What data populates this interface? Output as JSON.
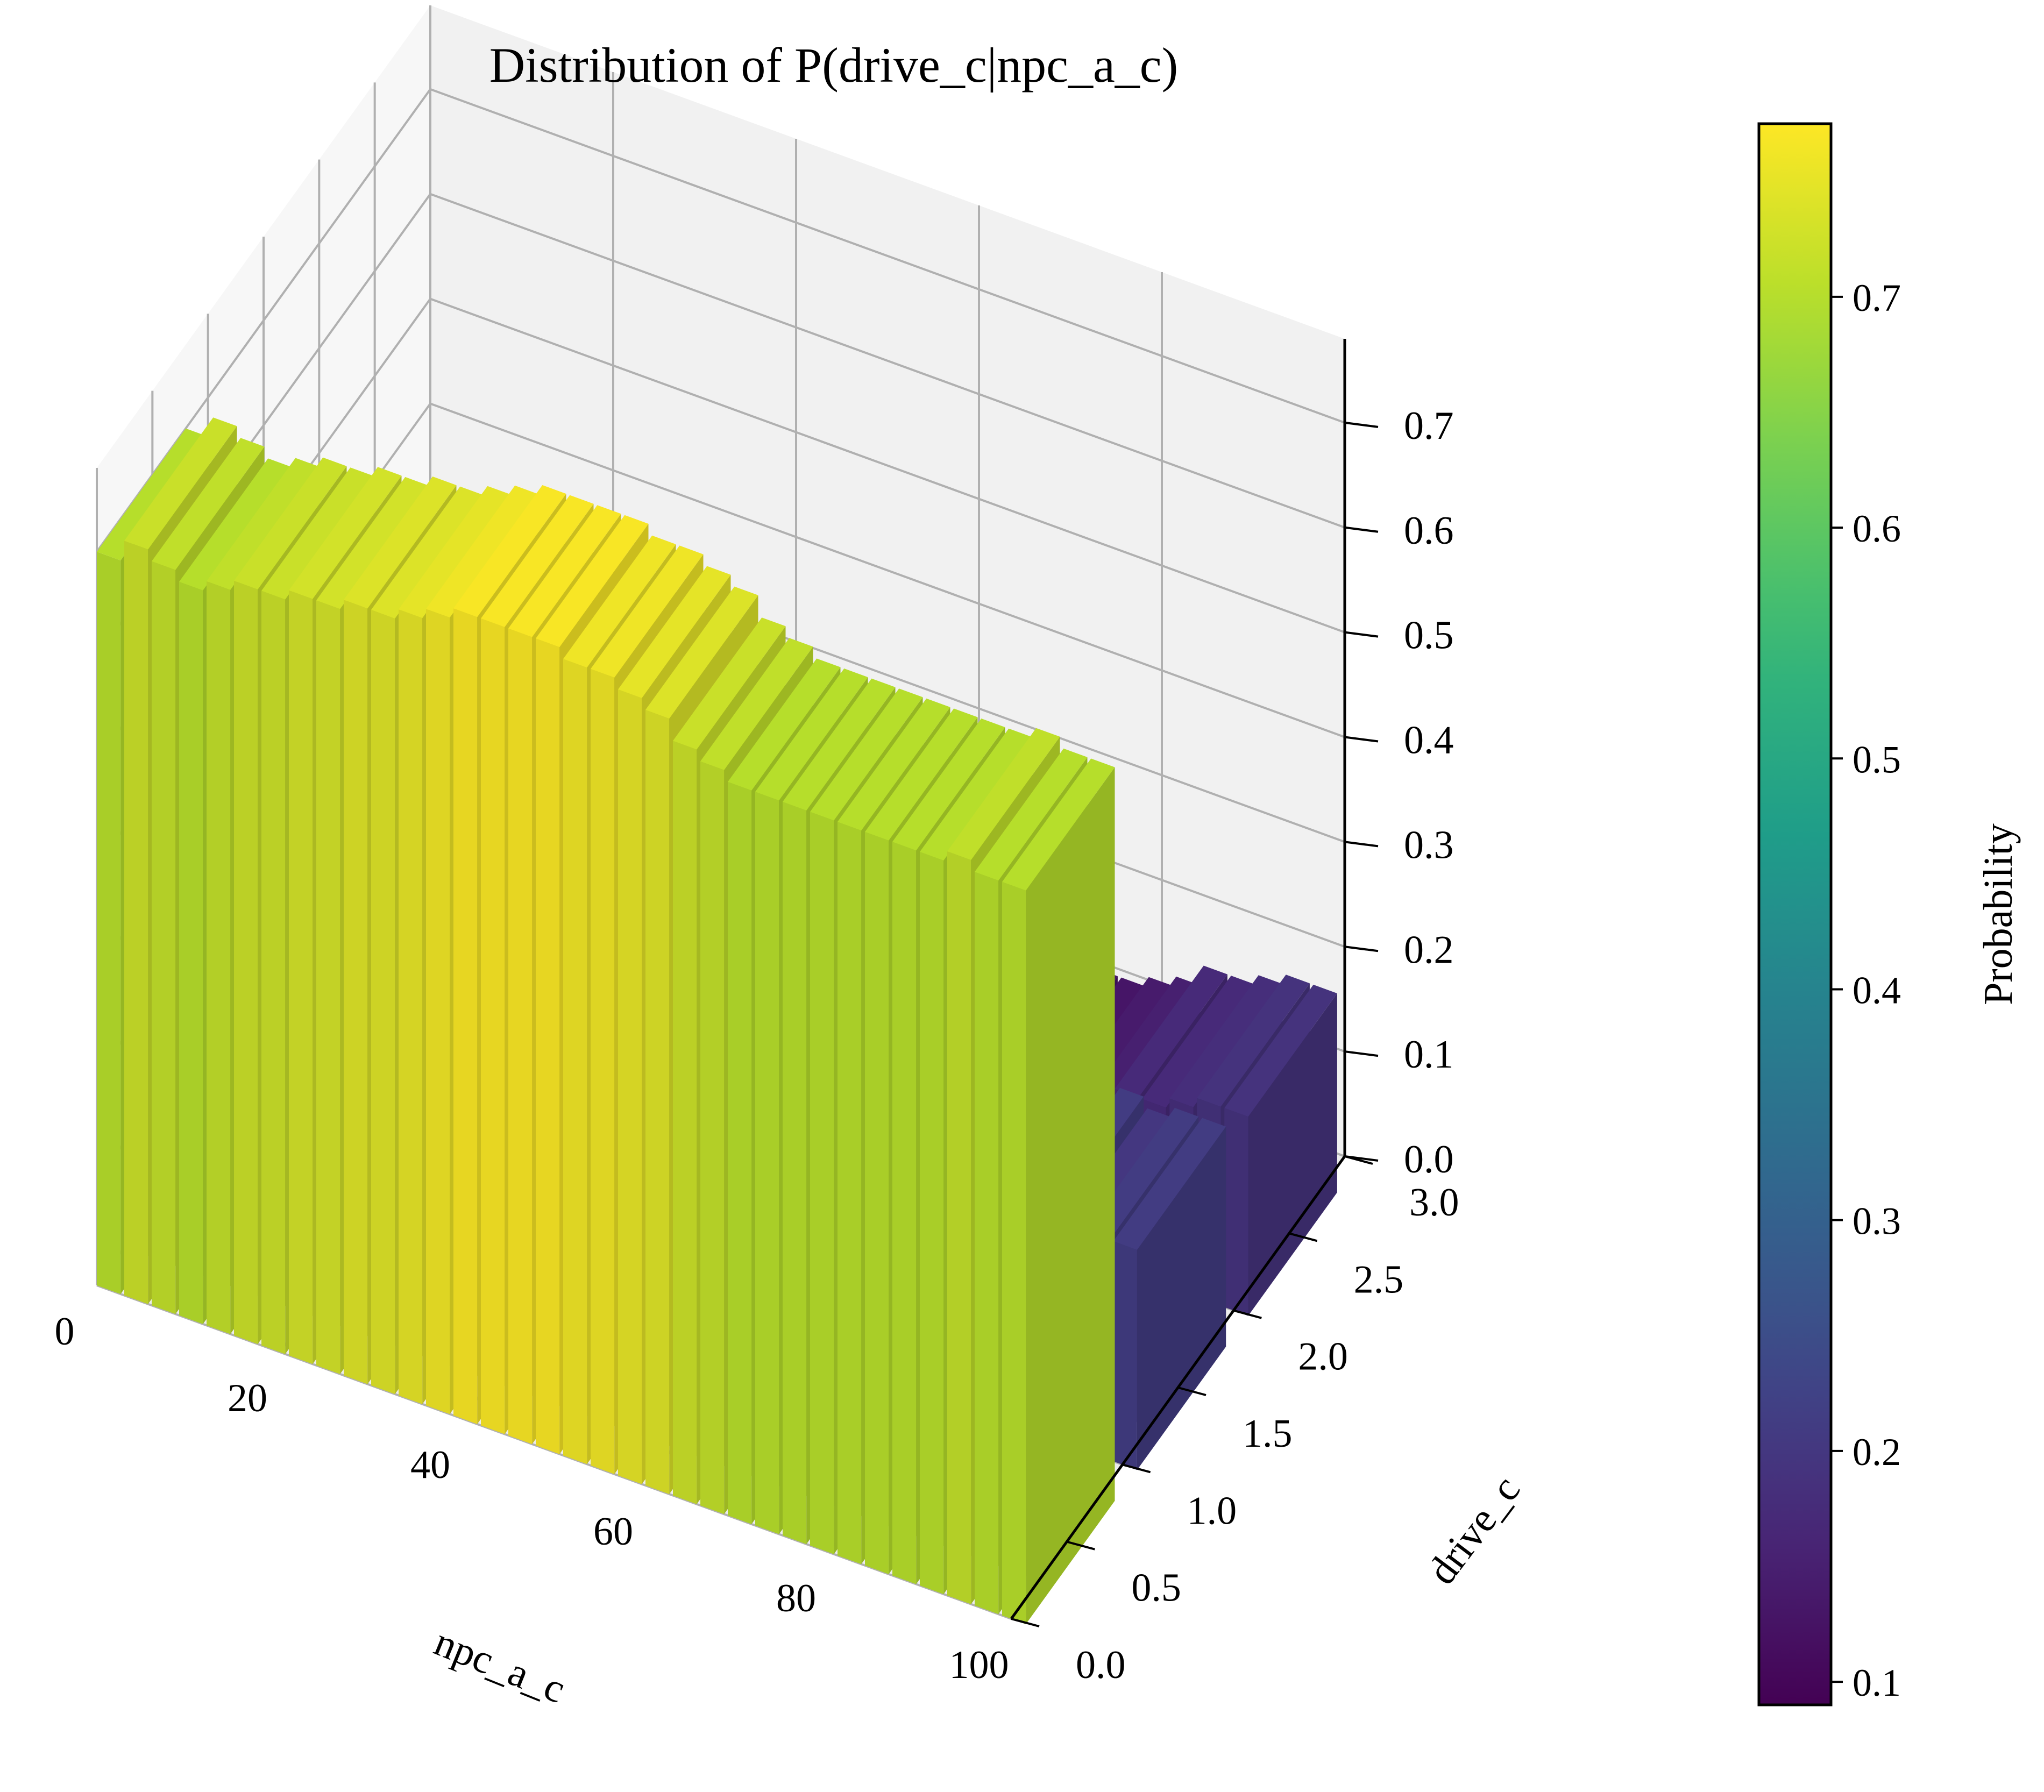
{
  "chart_data": {
    "type": "bar3d",
    "title": "Distribution of P(drive_c|npc_a_c)",
    "xlabel": "npc_a_c",
    "ylabel": "drive_c",
    "zlabel": "",
    "xlim": [
      0,
      100
    ],
    "ylim": [
      0,
      3
    ],
    "zlim": [
      0,
      0.78
    ],
    "x_ticks": [
      "0",
      "20",
      "40",
      "60",
      "80",
      "100"
    ],
    "y_ticks": [
      "0.0",
      "0.5",
      "1.0",
      "1.5",
      "2.0",
      "2.5",
      "3.0"
    ],
    "z_ticks": [
      "0.0",
      "0.1",
      "0.2",
      "0.3",
      "0.4",
      "0.5",
      "0.6",
      "0.7"
    ],
    "colorbar": {
      "label": "Probability",
      "range": [
        0.09,
        0.775
      ],
      "ticks": [
        "0.1",
        "0.2",
        "0.3",
        "0.4",
        "0.5",
        "0.6",
        "0.7"
      ],
      "colormap": "viridis"
    },
    "series": [
      {
        "drive_c": 0,
        "x": [
          0,
          3,
          6,
          9,
          12,
          15,
          18,
          21,
          24,
          27,
          30,
          33,
          36,
          39,
          42,
          45,
          48,
          51,
          54,
          57,
          60,
          63,
          66,
          69,
          72,
          75,
          78,
          81,
          84,
          87,
          90,
          93,
          96,
          99
        ],
        "values": [
          0.7,
          0.72,
          0.71,
          0.7,
          0.71,
          0.72,
          0.72,
          0.73,
          0.73,
          0.74,
          0.74,
          0.75,
          0.76,
          0.77,
          0.77,
          0.77,
          0.77,
          0.76,
          0.76,
          0.75,
          0.74,
          0.72,
          0.71,
          0.7,
          0.7,
          0.7,
          0.7,
          0.7,
          0.7,
          0.7,
          0.7,
          0.71,
          0.7,
          0.7
        ]
      },
      {
        "drive_c": 1,
        "x": [
          0,
          3,
          6,
          9,
          12,
          15,
          18,
          21,
          24,
          27,
          30,
          33,
          36,
          39,
          42,
          45,
          48,
          51,
          54,
          57,
          60,
          63,
          66,
          69,
          72,
          75,
          78,
          81,
          84,
          87,
          90,
          93,
          96,
          99
        ],
        "values": [
          0.2,
          0.21,
          0.2,
          0.2,
          0.19,
          0.19,
          0.18,
          0.18,
          0.18,
          0.17,
          0.17,
          0.16,
          0.16,
          0.15,
          0.15,
          0.15,
          0.15,
          0.15,
          0.16,
          0.16,
          0.17,
          0.18,
          0.18,
          0.19,
          0.2,
          0.2,
          0.21,
          0.21,
          0.21,
          0.2,
          0.21,
          0.2,
          0.21,
          0.21
        ]
      },
      {
        "drive_c": 2,
        "x": [
          0,
          3,
          6,
          9,
          12,
          15,
          18,
          21,
          24,
          27,
          30,
          33,
          36,
          39,
          42,
          45,
          48,
          51,
          54,
          57,
          60,
          63,
          66,
          69,
          72,
          75,
          78,
          81,
          84,
          87,
          90,
          93,
          96,
          99
        ],
        "values": [
          0.1,
          0.11,
          0.1,
          0.1,
          0.1,
          0.11,
          0.1,
          0.1,
          0.1,
          0.1,
          0.1,
          0.1,
          0.1,
          0.1,
          0.1,
          0.1,
          0.1,
          0.1,
          0.1,
          0.1,
          0.1,
          0.11,
          0.11,
          0.11,
          0.12,
          0.13,
          0.13,
          0.14,
          0.15,
          0.17,
          0.17,
          0.18,
          0.19,
          0.19
        ]
      }
    ]
  }
}
